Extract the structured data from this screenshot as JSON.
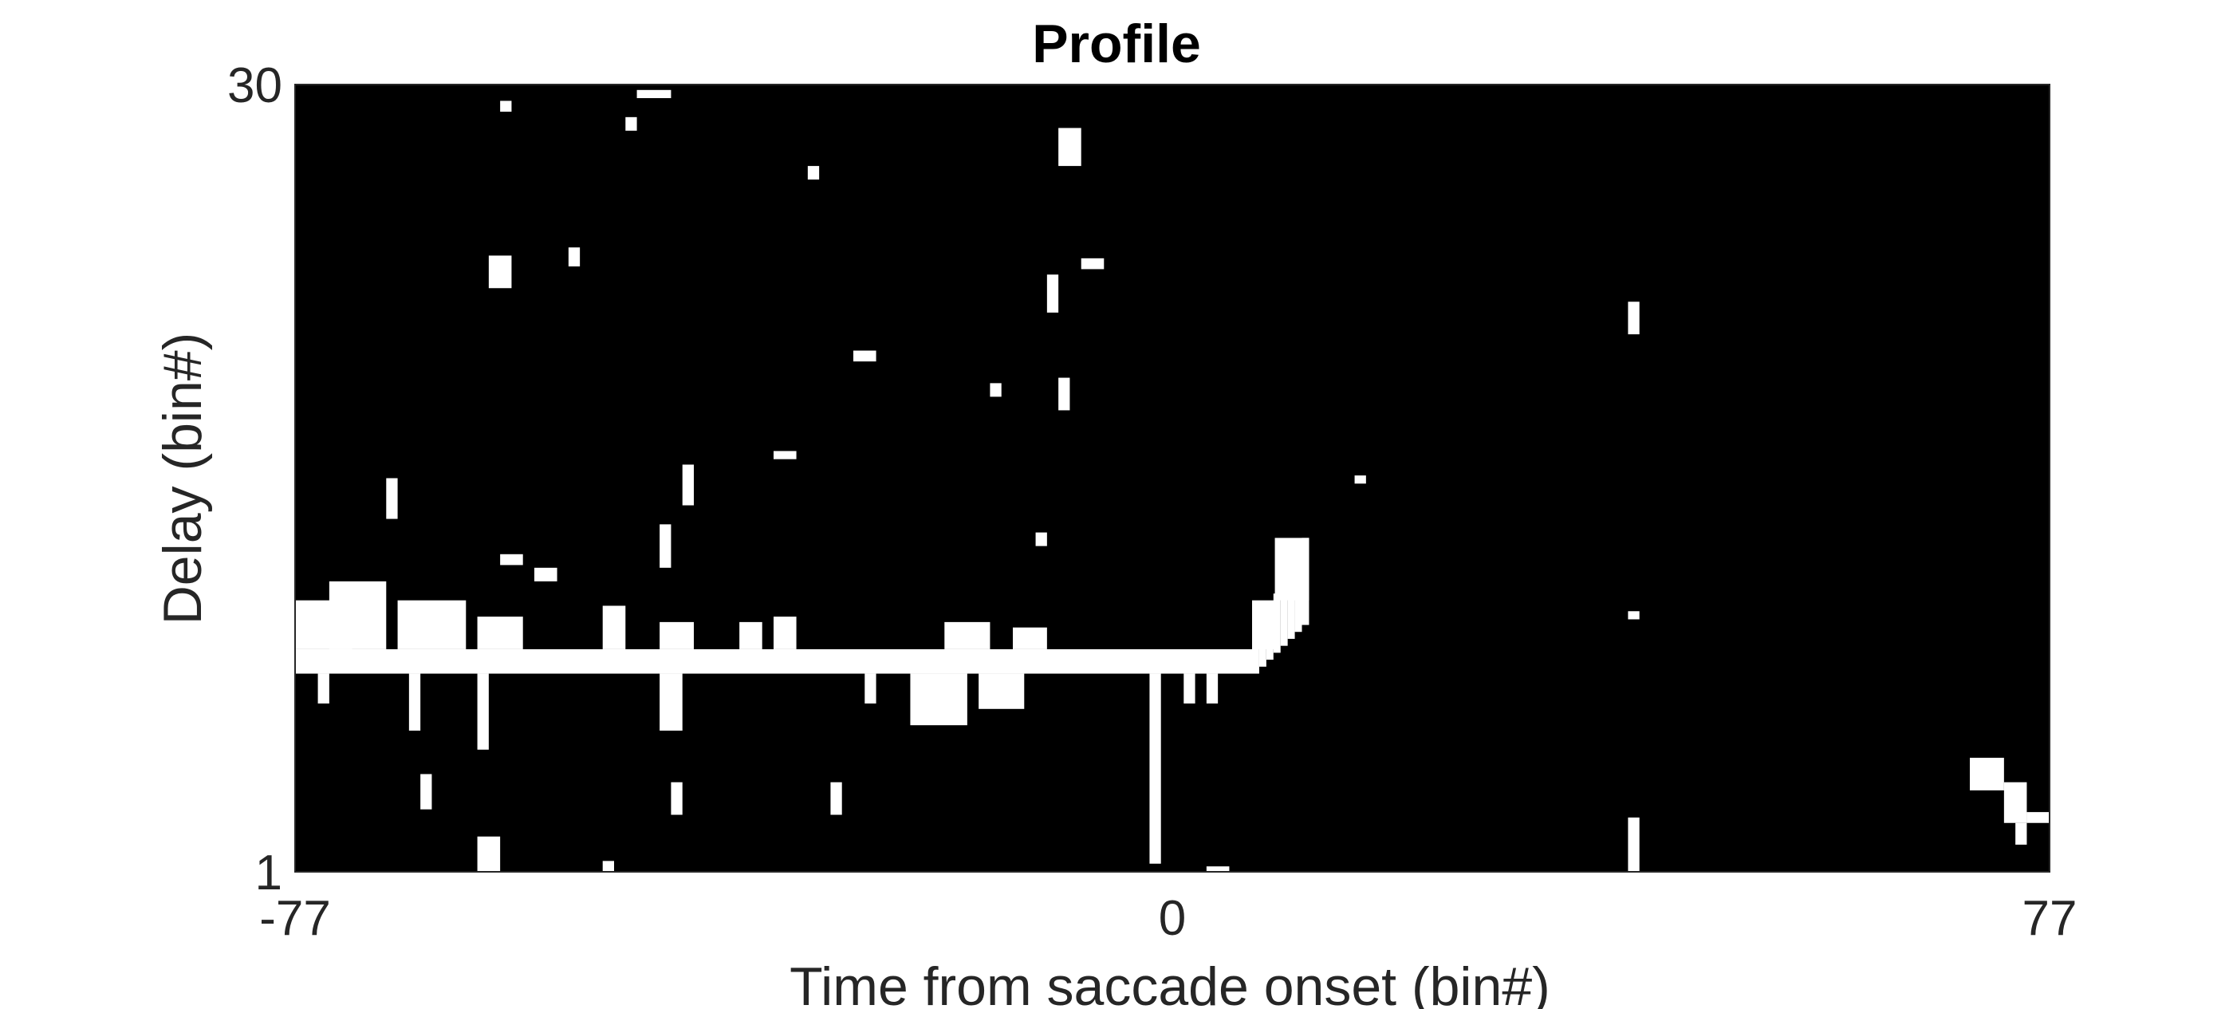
{
  "chart_data": {
    "type": "heatmap",
    "title": "Profile",
    "xlabel": "Time from saccade onset (bin#)",
    "ylabel": "Delay (bin#)",
    "xlim": [
      -77,
      77
    ],
    "ylim": [
      1,
      30
    ],
    "x_ticks": [
      "-77",
      "0",
      "77"
    ],
    "y_ticks": [
      "1",
      "30"
    ],
    "colormap": [
      "#000000",
      "#ffffff"
    ],
    "grid": false,
    "legend": "none",
    "main_band": {
      "description_values": "white band of significant bins",
      "x_start": -77,
      "x_end": 7,
      "y_low": 8.3,
      "y_high": 9.2,
      "rise_to": {
        "x": 12,
        "y": 13.3
      }
    },
    "regions": [
      {
        "x0": -77,
        "x1": -72,
        "y0": 9.2,
        "y1": 11
      },
      {
        "x0": -74,
        "x1": -69,
        "y0": 9.2,
        "y1": 11.7
      },
      {
        "x0": -68,
        "x1": -62,
        "y0": 9.2,
        "y1": 11
      },
      {
        "x0": -61,
        "x1": -57,
        "y0": 9.2,
        "y1": 10.4
      },
      {
        "x0": -50,
        "x1": -48,
        "y0": 9.2,
        "y1": 10.8
      },
      {
        "x0": -45,
        "x1": -42,
        "y0": 9.2,
        "y1": 10.2
      },
      {
        "x0": -38,
        "x1": -36,
        "y0": 9.2,
        "y1": 10.2
      },
      {
        "x0": -35,
        "x1": -33,
        "y0": 9.2,
        "y1": 10.4
      },
      {
        "x0": -20,
        "x1": -16,
        "y0": 9.2,
        "y1": 10.2
      },
      {
        "x0": -14,
        "x1": -11,
        "y0": 9.2,
        "y1": 10.0
      },
      {
        "x0": 7,
        "x1": 9,
        "y0": 9.2,
        "y1": 11
      },
      {
        "x0": 9,
        "x1": 12,
        "y0": 11,
        "y1": 13.3
      },
      {
        "x0": -75,
        "x1": -74,
        "y0": 7.2,
        "y1": 8.3
      },
      {
        "x0": -67,
        "x1": -66,
        "y0": 6.2,
        "y1": 8.3
      },
      {
        "x0": -61,
        "x1": -60,
        "y0": 5.5,
        "y1": 8.3
      },
      {
        "x0": -45,
        "x1": -43,
        "y0": 6.2,
        "y1": 8.3
      },
      {
        "x0": -27,
        "x1": -26,
        "y0": 7.2,
        "y1": 8.3
      },
      {
        "x0": -23,
        "x1": -18,
        "y0": 6.4,
        "y1": 8.3
      },
      {
        "x0": -17,
        "x1": -13,
        "y0": 7.0,
        "y1": 8.3
      },
      {
        "x0": -2,
        "x1": -1,
        "y0": 1.3,
        "y1": 8.3
      },
      {
        "x0": 1,
        "x1": 2,
        "y0": 7.2,
        "y1": 8.3
      },
      {
        "x0": 3,
        "x1": 4,
        "y0": 7.2,
        "y1": 8.3
      },
      {
        "x0": -61,
        "x1": -59,
        "y0": 1,
        "y1": 2.3
      },
      {
        "x0": -50,
        "x1": -49,
        "y0": 1,
        "y1": 1.4
      },
      {
        "x0": -44,
        "x1": -43,
        "y0": 3.1,
        "y1": 4.3
      },
      {
        "x0": -30,
        "x1": -29,
        "y0": 3.1,
        "y1": 4.3
      },
      {
        "x0": -66,
        "x1": -65,
        "y0": 3.3,
        "y1": 4.6
      },
      {
        "x0": -59,
        "x1": -57,
        "y0": 12.3,
        "y1": 12.7
      },
      {
        "x0": -56,
        "x1": -54,
        "y0": 11.7,
        "y1": 12.2
      },
      {
        "x0": -45,
        "x1": -44,
        "y0": 12.2,
        "y1": 13.8
      },
      {
        "x0": -69,
        "x1": -68,
        "y0": 14,
        "y1": 15.5
      },
      {
        "x0": -43,
        "x1": -42,
        "y0": 14.5,
        "y1": 16
      },
      {
        "x0": -10,
        "x1": -9,
        "y0": 18,
        "y1": 19.2
      },
      {
        "x0": -12,
        "x1": -11,
        "y0": 13,
        "y1": 13.5
      },
      {
        "x0": -35,
        "x1": -33,
        "y0": 16.2,
        "y1": 16.5
      },
      {
        "x0": -28,
        "x1": -26,
        "y0": 19.8,
        "y1": 20.2
      },
      {
        "x0": -11,
        "x1": -10,
        "y0": 21.6,
        "y1": 23.0
      },
      {
        "x0": -8,
        "x1": -6,
        "y0": 23.2,
        "y1": 23.6
      },
      {
        "x0": 40,
        "x1": 41,
        "y0": 20.8,
        "y1": 22.0
      },
      {
        "x0": -60,
        "x1": -58,
        "y0": 22.5,
        "y1": 23.7
      },
      {
        "x0": -53,
        "x1": -52,
        "y0": 23.3,
        "y1": 24.0
      },
      {
        "x0": -59,
        "x1": -58,
        "y0": 29.0,
        "y1": 29.4
      },
      {
        "x0": -47,
        "x1": -44,
        "y0": 29.5,
        "y1": 29.8
      },
      {
        "x0": -32,
        "x1": -31,
        "y0": 26.5,
        "y1": 27.0
      },
      {
        "x0": -10,
        "x1": -8,
        "y0": 27.0,
        "y1": 28.4
      },
      {
        "x0": -48,
        "x1": -47,
        "y0": 28.3,
        "y1": 28.8
      },
      {
        "x0": -16,
        "x1": -15,
        "y0": 18.5,
        "y1": 19.0
      },
      {
        "x0": 3,
        "x1": 5,
        "y0": 1,
        "y1": 1.2
      },
      {
        "x0": 40,
        "x1": 41,
        "y0": 1,
        "y1": 3.0
      },
      {
        "x0": 40,
        "x1": 41,
        "y0": 10.3,
        "y1": 10.6
      },
      {
        "x0": 70,
        "x1": 73,
        "y0": 4.0,
        "y1": 5.2
      },
      {
        "x0": 73,
        "x1": 75,
        "y0": 2.8,
        "y1": 4.3
      },
      {
        "x0": 75,
        "x1": 77,
        "y0": 2.8,
        "y1": 3.2
      },
      {
        "x0": 74,
        "x1": 75,
        "y0": 2.0,
        "y1": 2.8
      },
      {
        "x0": 16,
        "x1": 17,
        "y0": 15.3,
        "y1": 15.6
      }
    ]
  }
}
